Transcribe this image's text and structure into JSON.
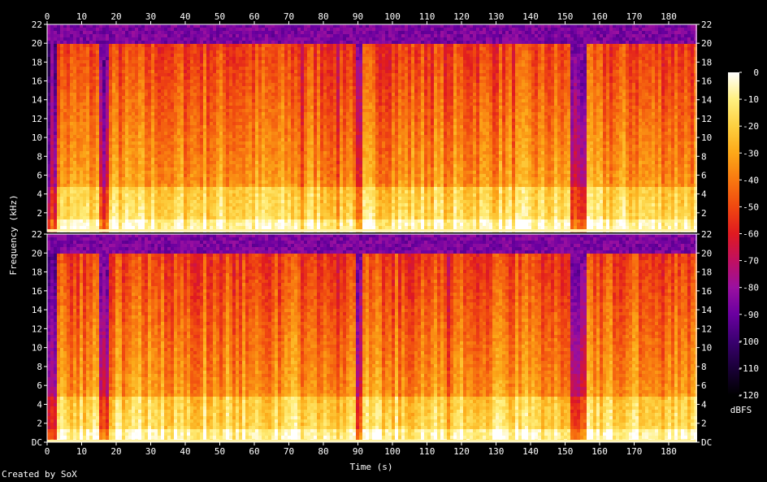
{
  "chart_data": {
    "type": "heatmap",
    "subtype": "spectrogram",
    "channels": 2,
    "xlabel": "Time (s)",
    "ylabel": "Frequency (kHz)",
    "xlim": [
      0,
      188
    ],
    "ylim_khz": [
      0,
      22
    ],
    "x_ticks": [
      "0",
      "10",
      "20",
      "30",
      "40",
      "50",
      "60",
      "70",
      "80",
      "90",
      "100",
      "110",
      "120",
      "130",
      "140",
      "150",
      "160",
      "170",
      "180"
    ],
    "y_ticks": [
      "DC",
      "2",
      "4",
      "6",
      "8",
      "10",
      "12",
      "14",
      "16",
      "18",
      "20",
      "22"
    ],
    "colorbar": {
      "label": "dBFS",
      "ticks": [
        "0",
        "-10",
        "-20",
        "-30",
        "-40",
        "-50",
        "-60",
        "-70",
        "-80",
        "-90",
        "-100",
        "-110",
        "-120"
      ],
      "range": [
        -120,
        0
      ],
      "colors": [
        "#000000",
        "#1a0038",
        "#3a0070",
        "#6a00a0",
        "#9a10a0",
        "#c01060",
        "#e01a20",
        "#f04810",
        "#f87810",
        "#fca818",
        "#fdd040",
        "#fff080",
        "#ffffff"
      ]
    },
    "lowpass_cutoff_khz": 20,
    "quiet_segments_s": [
      [
        15,
        17
      ],
      [
        89,
        90.5
      ],
      [
        151,
        156
      ]
    ],
    "dip_segments_s": [
      [
        35,
        36
      ],
      [
        73,
        74
      ],
      [
        82,
        84
      ],
      [
        115,
        116
      ]
    ]
  },
  "footer": {
    "credit": "Created by SoX"
  }
}
